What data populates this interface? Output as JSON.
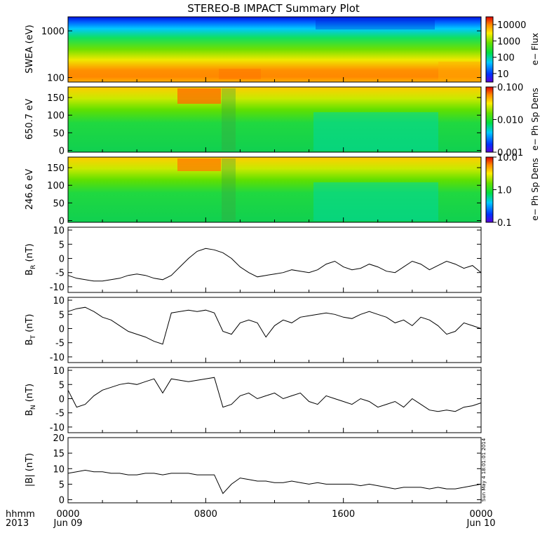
{
  "title": "STEREO-B IMPACT Summary Plot",
  "footer": {
    "time_label_row1": "hhmm",
    "time_label_row2": "2013",
    "stamp": "Sun May  4 18:01:01 2014",
    "x_ticks": [
      {
        "hours": 0,
        "top": "0000",
        "bottom": "Jun 09"
      },
      {
        "hours": 8,
        "top": "0800",
        "bottom": ""
      },
      {
        "hours": 16,
        "top": "1600",
        "bottom": ""
      },
      {
        "hours": 24,
        "top": "0000",
        "bottom": "Jun 10"
      }
    ]
  },
  "chart_data": [
    {
      "id": "swea",
      "type": "heatmap",
      "ylabel": "SWEA (eV)",
      "yscale": "log",
      "ylim": [
        80,
        2000
      ],
      "yticks": [
        {
          "v": 100,
          "label": "100"
        },
        {
          "v": 1000,
          "label": "1000"
        }
      ],
      "colorbar": {
        "label": "e− Flux",
        "scale": "log",
        "range": [
          3,
          30000
        ],
        "ticks": [
          {
            "v": 10,
            "label": "10"
          },
          {
            "v": 100,
            "label": "100"
          },
          {
            "v": 1000,
            "label": "1000"
          },
          {
            "v": 10000,
            "label": "10000"
          }
        ]
      }
    },
    {
      "id": "pad650",
      "type": "heatmap",
      "ylabel": "650.7 eV",
      "ylim": [
        -5,
        180
      ],
      "yticks": [
        {
          "v": 0,
          "label": "0"
        },
        {
          "v": 50,
          "label": "50"
        },
        {
          "v": 100,
          "label": "100"
        },
        {
          "v": 150,
          "label": "150"
        }
      ],
      "colorbar": {
        "label": "e− Ph Sp Dens",
        "scale": "log",
        "range": [
          0.001,
          0.1
        ],
        "ticks": [
          {
            "v": 0.001,
            "label": "0.001"
          },
          {
            "v": 0.01,
            "label": "0.010"
          },
          {
            "v": 0.1,
            "label": "0.100"
          }
        ]
      }
    },
    {
      "id": "pad246",
      "type": "heatmap",
      "ylabel": "246.6 eV",
      "ylim": [
        -5,
        180
      ],
      "yticks": [
        {
          "v": 0,
          "label": "0"
        },
        {
          "v": 50,
          "label": "50"
        },
        {
          "v": 100,
          "label": "100"
        },
        {
          "v": 150,
          "label": "150"
        }
      ],
      "colorbar": {
        "label": "e− Ph Sp Dens",
        "scale": "log",
        "range": [
          0.1,
          10
        ],
        "ticks": [
          {
            "v": 0.1,
            "label": "0.1"
          },
          {
            "v": 1,
            "label": "1.0"
          },
          {
            "v": 10,
            "label": "10.0"
          }
        ]
      }
    },
    {
      "id": "br",
      "type": "line",
      "ylabel_main": "B",
      "ylabel_sub": "R",
      "ylabel_unit": " (nT)",
      "ylim": [
        -12,
        11
      ],
      "yticks": [
        -10,
        -5,
        0,
        5,
        10
      ],
      "x": [
        0,
        0.5,
        1,
        1.5,
        2,
        2.5,
        3,
        3.5,
        4,
        4.5,
        5,
        5.5,
        6,
        6.5,
        7,
        7.5,
        8,
        8.5,
        9,
        9.5,
        10,
        10.5,
        11,
        11.5,
        12,
        12.5,
        13,
        13.5,
        14,
        14.5,
        15,
        15.5,
        16,
        16.5,
        17,
        17.5,
        18,
        18.5,
        19,
        19.5,
        20,
        20.5,
        21,
        21.5,
        22,
        22.5,
        23,
        23.5,
        24
      ],
      "y": [
        -6,
        -7,
        -7.5,
        -8,
        -8,
        -7.5,
        -7,
        -6,
        -5.5,
        -6,
        -7,
        -7.5,
        -6,
        -3,
        0,
        2.5,
        3.5,
        3,
        2,
        0,
        -3,
        -5,
        -6.5,
        -6,
        -5.5,
        -5,
        -4,
        -4.5,
        -5,
        -4,
        -2,
        -1,
        -3,
        -4,
        -3.5,
        -2,
        -3,
        -4.5,
        -5,
        -3,
        -1,
        -2,
        -4,
        -2.5,
        -1,
        -2,
        -3.5,
        -2.5,
        -5
      ]
    },
    {
      "id": "bt",
      "type": "line",
      "ylabel_main": "B",
      "ylabel_sub": "T",
      "ylabel_unit": " (nT)",
      "ylim": [
        -12,
        11
      ],
      "yticks": [
        -10,
        -5,
        0,
        5,
        10
      ],
      "x": [
        0,
        0.5,
        1,
        1.5,
        2,
        2.5,
        3,
        3.5,
        4,
        4.5,
        5,
        5.5,
        6,
        6.5,
        7,
        7.5,
        8,
        8.5,
        9,
        9.5,
        10,
        10.5,
        11,
        11.5,
        12,
        12.5,
        13,
        13.5,
        14,
        14.5,
        15,
        15.5,
        16,
        16.5,
        17,
        17.5,
        18,
        18.5,
        19,
        19.5,
        20,
        20.5,
        21,
        21.5,
        22,
        22.5,
        23,
        23.5,
        24
      ],
      "y": [
        6,
        7,
        7.5,
        6,
        4,
        3,
        1,
        -1,
        -2,
        -3,
        -4.5,
        -5.5,
        5.5,
        6,
        6.5,
        6,
        6.5,
        5.5,
        -1,
        -2,
        2,
        3,
        2,
        -3,
        1,
        3,
        2,
        4,
        4.5,
        5,
        5.5,
        5,
        4,
        3.5,
        5,
        6,
        5,
        4,
        2,
        3,
        1,
        4,
        3,
        1,
        -2,
        -1,
        2,
        1,
        0
      ]
    },
    {
      "id": "bn",
      "type": "line",
      "ylabel_main": "B",
      "ylabel_sub": "N",
      "ylabel_unit": " (nT)",
      "ylim": [
        -12,
        11
      ],
      "yticks": [
        -10,
        -5,
        0,
        5,
        10
      ],
      "x": [
        0,
        0.5,
        1,
        1.5,
        2,
        2.5,
        3,
        3.5,
        4,
        4.5,
        5,
        5.5,
        6,
        6.5,
        7,
        7.5,
        8,
        8.5,
        9,
        9.5,
        10,
        10.5,
        11,
        11.5,
        12,
        12.5,
        13,
        13.5,
        14,
        14.5,
        15,
        15.5,
        16,
        16.5,
        17,
        17.5,
        18,
        18.5,
        19,
        19.5,
        20,
        20.5,
        21,
        21.5,
        22,
        22.5,
        23,
        23.5,
        24
      ],
      "y": [
        3,
        -3,
        -2,
        1,
        3,
        4,
        5,
        5.5,
        5,
        6,
        7,
        2,
        7,
        6.5,
        6,
        6.5,
        7,
        7.5,
        -3,
        -2,
        1,
        2,
        0,
        1,
        2,
        0,
        1,
        2,
        -1,
        -2,
        1,
        0,
        -1,
        -2,
        0,
        -1,
        -3,
        -2,
        -1,
        -3,
        0,
        -2,
        -4,
        -4.5,
        -4,
        -4.5,
        -3,
        -2.5,
        -1.5
      ]
    },
    {
      "id": "bmag",
      "type": "line",
      "ylabel_main": "|B| (nT)",
      "ylim": [
        -1,
        20
      ],
      "yticks": [
        0,
        5,
        10,
        15,
        20
      ],
      "x": [
        0,
        0.5,
        1,
        1.5,
        2,
        2.5,
        3,
        3.5,
        4,
        4.5,
        5,
        5.5,
        6,
        6.5,
        7,
        7.5,
        8,
        8.5,
        9,
        9.5,
        10,
        10.5,
        11,
        11.5,
        12,
        12.5,
        13,
        13.5,
        14,
        14.5,
        15,
        15.5,
        16,
        16.5,
        17,
        17.5,
        18,
        18.5,
        19,
        19.5,
        20,
        20.5,
        21,
        21.5,
        22,
        22.5,
        23,
        23.5,
        24
      ],
      "y": [
        8.5,
        9,
        9.5,
        9,
        9,
        8.5,
        8.5,
        8,
        8,
        8.5,
        8.5,
        8,
        8.5,
        8.5,
        8.5,
        8,
        8,
        8,
        2,
        5,
        7,
        6.5,
        6,
        6,
        5.5,
        5.5,
        6,
        5.5,
        5,
        5.5,
        5,
        5,
        5,
        5,
        4.5,
        5,
        4.5,
        4,
        3.5,
        4,
        4,
        4,
        3.5,
        4,
        3.5,
        3.5,
        4,
        4.5,
        5
      ]
    }
  ]
}
